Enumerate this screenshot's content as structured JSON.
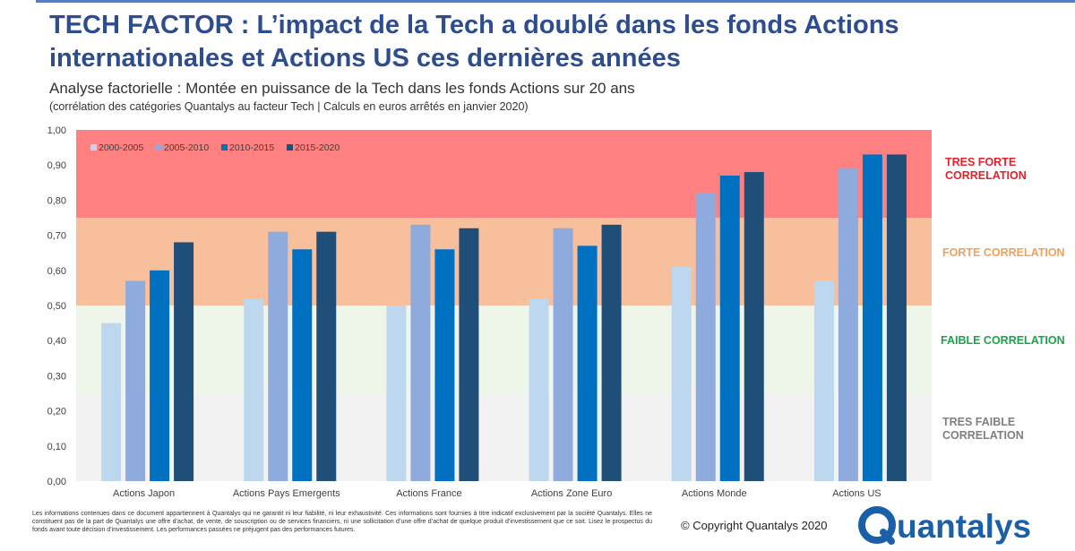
{
  "header": {
    "title": "TECH FACTOR : L’impact de la Tech a doublé dans les fonds Actions internationales et Actions US ces dernières années",
    "subtitle": "Analyse factorielle : Montée en puissance de la Tech dans les fonds Actions sur 20 ans",
    "note": "(corrélation des catégories Quantalys au facteur Tech | Calculs en euros arrêtés en janvier 2020)"
  },
  "zones": {
    "very_strong": "TRES FORTE CORRELATION",
    "strong": "FORTE CORRELATION",
    "weak": "FAIBLE CORRELATION",
    "very_weak": "TRES FAIBLE CORRELATION"
  },
  "colors": {
    "title": "#2e4d8f",
    "very_strong_band": "#ff8080",
    "strong_band": "#f7bf9c",
    "weak_band": "#eef6ea",
    "very_weak_band": "#f2f2f2"
  },
  "chart_data": {
    "type": "bar",
    "categories": [
      "Actions Japon",
      "Actions Pays Emergents",
      "Actions France",
      "Actions Zone Euro",
      "Actions Monde",
      "Actions US"
    ],
    "series": [
      {
        "name": "2000-2005",
        "color": "#bdd7ee",
        "values": [
          0.45,
          0.52,
          0.5,
          0.52,
          0.61,
          0.57
        ]
      },
      {
        "name": "2005-2010",
        "color": "#8faadc",
        "values": [
          0.57,
          0.71,
          0.73,
          0.72,
          0.82,
          0.89
        ]
      },
      {
        "name": "2010-2015",
        "color": "#0070c0",
        "values": [
          0.6,
          0.66,
          0.66,
          0.67,
          0.87,
          0.93
        ]
      },
      {
        "name": "2015-2020",
        "color": "#1f4e79",
        "values": [
          0.68,
          0.71,
          0.72,
          0.73,
          0.88,
          0.93
        ]
      }
    ],
    "ylim": [
      0,
      1.0
    ],
    "yticks": [
      "0,00",
      "0,10",
      "0,20",
      "0,30",
      "0,40",
      "0,50",
      "0,60",
      "0,70",
      "0,80",
      "0,90",
      "1,00"
    ],
    "bands": [
      {
        "zone": "very_weak",
        "from": 0.0,
        "to": 0.25
      },
      {
        "zone": "weak",
        "from": 0.25,
        "to": 0.5
      },
      {
        "zone": "strong",
        "from": 0.5,
        "to": 0.75
      },
      {
        "zone": "very_strong",
        "from": 0.75,
        "to": 1.0
      }
    ],
    "legend_position": "top-left",
    "grid": false
  },
  "footer": {
    "disclaimer": "Les informations contenues dans ce document appartiennent à Quantalys qui ne garantit ni leur fiabilité, ni leur exhaustivité. Ces informations sont fournies à titre indicatif exclusivement par la société Quantalys. Elles ne constituent pas de la part de Quantalys une offre d’achat, de vente, de souscription ou de services financiers, ni une sollicitation d’une offre d’achat de quelque produit d’investissement que ce soit. Lisez le prospectus du fonds avant toute décision d’investissement. Les performances passées ne préjugent pas des performances futures.",
    "copyright": "© Copyright Quantalys 2020",
    "logo_text": "Quantalys"
  }
}
